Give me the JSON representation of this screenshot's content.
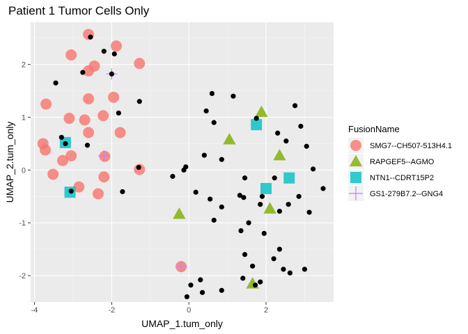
{
  "chart_data": {
    "type": "scatter",
    "title": "Patient 1 Tumor Cells Only",
    "xlabel": "UMAP_1.tum_only",
    "ylabel": "UMAP_2.tum_only",
    "xlim": [
      -4.1,
      3.75
    ],
    "ylim": [
      -2.5,
      2.8
    ],
    "x_ticks": [
      -4,
      -2,
      0,
      2
    ],
    "x_tick_labels": [
      "-4",
      "-2",
      "0",
      "2"
    ],
    "y_ticks": [
      -2,
      -1,
      0,
      1,
      2
    ],
    "y_tick_labels": [
      "-2",
      "-1",
      "0",
      "1",
      "2"
    ],
    "grid": true,
    "legend_position": "right",
    "legend_title": "FusionName",
    "all_cells": [
      [
        -2.55,
        2.52
      ],
      [
        -2.2,
        2.25
      ],
      [
        -1.93,
        2.2
      ],
      [
        -2.75,
        1.85
      ],
      [
        -2.0,
        1.82
      ],
      [
        -3.45,
        1.65
      ],
      [
        -1.28,
        1.3
      ],
      [
        -1.82,
        1.08
      ],
      [
        -3.3,
        0.62
      ],
      [
        -2.63,
        0.47
      ],
      [
        -1.72,
        -0.41
      ],
      [
        0.6,
        1.45
      ],
      [
        1.15,
        1.4
      ],
      [
        0.45,
        1.12
      ],
      [
        0.65,
        0.9
      ],
      [
        1.75,
        0.98
      ],
      [
        2.75,
        1.22
      ],
      [
        2.3,
        0.7
      ],
      [
        2.52,
        0.55
      ],
      [
        2.9,
        0.83
      ],
      [
        3.05,
        0.45
      ],
      [
        3.22,
        0.02
      ],
      [
        3.48,
        -0.35
      ],
      [
        3.12,
        -0.8
      ],
      [
        2.85,
        -0.5
      ],
      [
        2.58,
        -0.65
      ],
      [
        2.35,
        -0.78
      ],
      [
        2.22,
        -0.15
      ],
      [
        1.9,
        -0.5
      ],
      [
        1.45,
        -0.15
      ],
      [
        1.42,
        -0.52
      ],
      [
        1.32,
        -0.48
      ],
      [
        0.4,
        0.28
      ],
      [
        0.85,
        0.2
      ],
      [
        -0.08,
        0.06
      ],
      [
        -0.13,
        0.0
      ],
      [
        -0.42,
        -0.12
      ],
      [
        0.18,
        -0.42
      ],
      [
        0.55,
        -0.55
      ],
      [
        0.85,
        -0.7
      ],
      [
        0.65,
        -0.95
      ],
      [
        1.85,
        -0.65
      ],
      [
        1.55,
        -1.0
      ],
      [
        1.35,
        -1.15
      ],
      [
        1.95,
        -1.2
      ],
      [
        1.45,
        -1.6
      ],
      [
        1.65,
        -1.82
      ],
      [
        2.35,
        -1.5
      ],
      [
        2.2,
        -1.68
      ],
      [
        2.45,
        -1.88
      ],
      [
        2.62,
        -1.95
      ],
      [
        3.0,
        -1.88
      ],
      [
        1.4,
        -2.05
      ],
      [
        1.72,
        -2.18
      ],
      [
        1.85,
        -2.12
      ],
      [
        0.85,
        -2.28
      ],
      [
        0.35,
        -2.32
      ],
      [
        0.05,
        -2.18
      ],
      [
        0.3,
        -2.08
      ],
      [
        -0.05,
        -2.4
      ],
      [
        -1.3,
        0.05
      ],
      [
        -3.2,
        0.5
      ],
      [
        -3.05,
        -0.4
      ]
    ],
    "series": [
      {
        "name": "SMG7--CH507-513H4.1",
        "color": "#F8766D",
        "shape": "circle",
        "points": [
          [
            -2.6,
            2.57
          ],
          [
            -1.88,
            2.35
          ],
          [
            -3.05,
            2.18
          ],
          [
            -2.45,
            1.97
          ],
          [
            -2.6,
            1.88
          ],
          [
            -1.28,
            2.02
          ],
          [
            -3.7,
            1.25
          ],
          [
            -2.6,
            1.35
          ],
          [
            -1.95,
            1.38
          ],
          [
            -3.1,
            0.98
          ],
          [
            -2.22,
            1.03
          ],
          [
            -2.7,
            0.95
          ],
          [
            -2.6,
            0.71
          ],
          [
            -1.78,
            0.71
          ],
          [
            -3.78,
            0.5
          ],
          [
            -3.72,
            0.38
          ],
          [
            -3.05,
            0.27
          ],
          [
            -3.27,
            0.18
          ],
          [
            -2.18,
            0.26
          ],
          [
            -3.52,
            -0.08
          ],
          [
            -2.2,
            -0.13
          ],
          [
            -2.85,
            -0.32
          ],
          [
            -2.35,
            -0.45
          ],
          [
            -1.28,
            0.01
          ],
          [
            -0.2,
            -1.83
          ]
        ]
      },
      {
        "name": "RAPGEF5--AGMO",
        "color": "#7CAE00",
        "shape": "triangle",
        "points": [
          [
            1.05,
            0.58
          ],
          [
            1.88,
            1.1
          ],
          [
            2.35,
            0.28
          ],
          [
            -0.25,
            -0.83
          ],
          [
            2.1,
            -0.73
          ],
          [
            1.65,
            -2.15
          ]
        ]
      },
      {
        "name": "NTN1--CDRT15P2",
        "color": "#00BFC4",
        "shape": "square",
        "points": [
          [
            -3.2,
            0.52
          ],
          [
            -3.08,
            -0.42
          ],
          [
            1.75,
            0.86
          ],
          [
            2.0,
            -0.35
          ],
          [
            2.6,
            -0.15
          ]
        ]
      },
      {
        "name": "GS1-279B7.2--GNG4",
        "color": "#C77CFF",
        "shape": "cross",
        "points": [
          [
            -2.0,
            1.82
          ],
          [
            -2.2,
            0.27
          ],
          [
            -0.2,
            -1.83
          ]
        ]
      }
    ]
  }
}
